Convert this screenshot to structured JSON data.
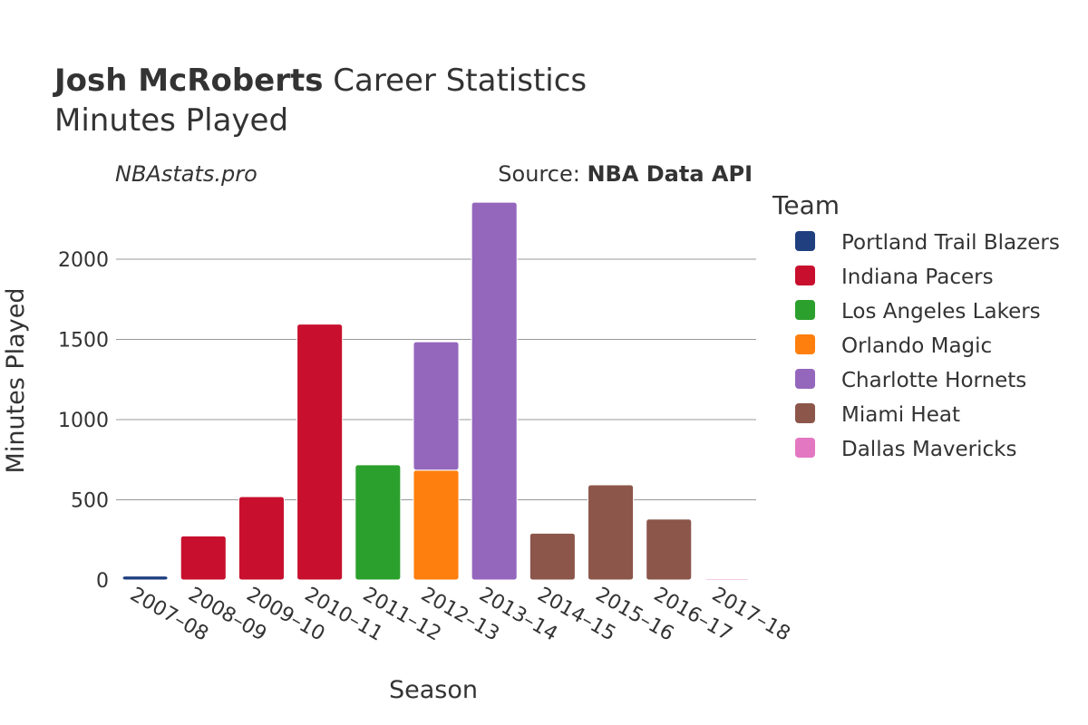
{
  "header": {
    "title_bold": "Josh McRoberts",
    "title_rest": " Career Statistics",
    "subtitle": "Minutes Played"
  },
  "annotations": {
    "site": "NBAstats.pro",
    "source_prefix": "Source: ",
    "source_bold": "NBA Data API"
  },
  "legend_title": "Team",
  "colors": {
    "Portland Trail Blazers": "#1f3f7f",
    "Indiana Pacers": "#c8102e",
    "Los Angeles Lakers": "#2ca02c",
    "Orlando Magic": "#ff7f0e",
    "Charlotte Hornets": "#9467bd",
    "Miami Heat": "#8c564b",
    "Dallas Mavericks": "#e377c2",
    "grid": "#999999",
    "text": "#333333"
  },
  "chart_data": {
    "type": "bar",
    "stacked": true,
    "xlabel": "Season",
    "ylabel": "Minutes Played",
    "ylim": [
      0,
      2400
    ],
    "yticks": [
      0,
      500,
      1000,
      1500,
      2000
    ],
    "categories": [
      "2007–08",
      "2008–09",
      "2009–10",
      "2010–11",
      "2011–12",
      "2012–13",
      "2013–14",
      "2014–15",
      "2015–16",
      "2016–17",
      "2017–18"
    ],
    "series": [
      {
        "name": "Portland Trail Blazers",
        "values": [
          25,
          0,
          0,
          0,
          0,
          0,
          0,
          0,
          0,
          0,
          0
        ]
      },
      {
        "name": "Indiana Pacers",
        "values": [
          0,
          275,
          520,
          1595,
          0,
          0,
          0,
          0,
          0,
          0,
          0
        ]
      },
      {
        "name": "Los Angeles Lakers",
        "values": [
          0,
          0,
          0,
          0,
          718,
          0,
          0,
          0,
          0,
          0,
          0
        ]
      },
      {
        "name": "Orlando Magic",
        "values": [
          0,
          0,
          0,
          0,
          0,
          685,
          0,
          0,
          0,
          0,
          0
        ]
      },
      {
        "name": "Charlotte Hornets",
        "values": [
          0,
          0,
          0,
          0,
          0,
          800,
          2355,
          0,
          0,
          0,
          0
        ]
      },
      {
        "name": "Miami Heat",
        "values": [
          0,
          0,
          0,
          0,
          0,
          0,
          0,
          292,
          593,
          380,
          0
        ]
      },
      {
        "name": "Dallas Mavericks",
        "values": [
          0,
          0,
          0,
          0,
          0,
          0,
          0,
          0,
          0,
          0,
          8
        ]
      }
    ],
    "legend_position": "right"
  }
}
